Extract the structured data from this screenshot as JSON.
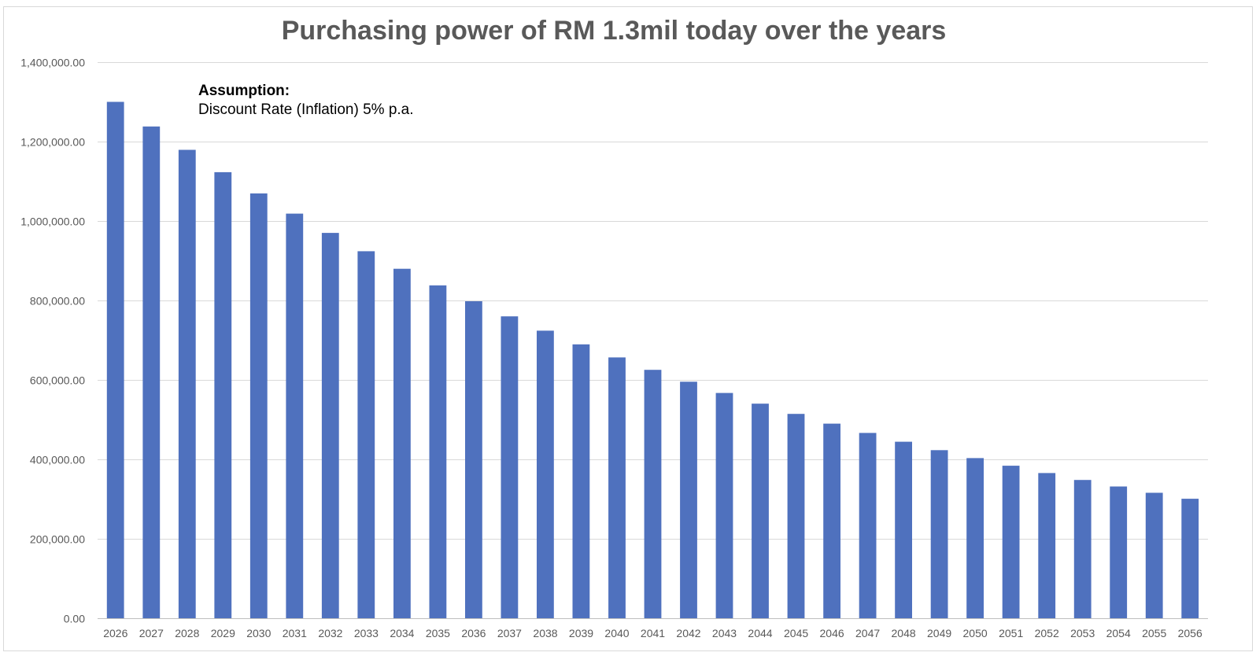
{
  "chart_data": {
    "type": "bar",
    "title": "Purchasing power of RM 1.3mil today over the years",
    "annotation": {
      "heading": "Assumption:",
      "text": "Discount Rate (Inflation) 5% p.a."
    },
    "xlabel": "",
    "ylabel": "",
    "ylim": [
      0,
      1400000
    ],
    "yticks": [
      "0.00",
      "200,000.00",
      "400,000.00",
      "600,000.00",
      "800,000.00",
      "1,000,000.00",
      "1,200,000.00",
      "1,400,000.00"
    ],
    "ytick_values": [
      0,
      200000,
      400000,
      600000,
      800000,
      1000000,
      1200000,
      1400000
    ],
    "grid": true,
    "bar_color": "#4F71BE",
    "categories": [
      "2026",
      "2027",
      "2028",
      "2029",
      "2030",
      "2031",
      "2032",
      "2033",
      "2034",
      "2035",
      "2036",
      "2037",
      "2038",
      "2039",
      "2040",
      "2041",
      "2042",
      "2043",
      "2044",
      "2045",
      "2046",
      "2047",
      "2048",
      "2049",
      "2050",
      "2051",
      "2052",
      "2053",
      "2054",
      "2055",
      "2056"
    ],
    "values": [
      1300000,
      1238095,
      1179138,
      1122988,
      1069512,
      1018583,
      970079,
      923885,
      879890,
      837991,
      798087,
      760083,
      723888,
      689417,
      656587,
      625321,
      595544,
      567184,
      540175,
      514452,
      489954,
      466623,
      444403,
      423241,
      403087,
      383892,
      365612,
      348202,
      331621,
      315830,
      300790
    ]
  }
}
